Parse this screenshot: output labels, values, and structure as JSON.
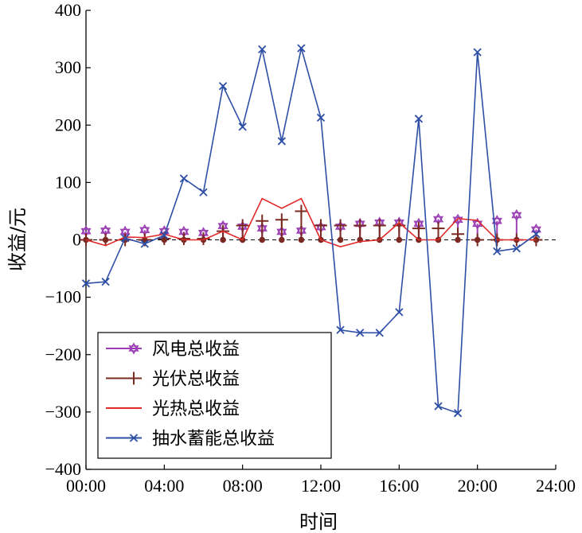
{
  "chart_data": {
    "type": "line",
    "xlabel": "时间",
    "ylabel": "收益/元",
    "xlim": [
      0,
      24
    ],
    "ylim": [
      -400,
      400
    ],
    "x_ticks": [
      "00:00",
      "04:00",
      "08:00",
      "12:00",
      "16:00",
      "20:00",
      "24:00"
    ],
    "y_ticks": [
      "400",
      "300",
      "200",
      "100",
      "0",
      "−100",
      "−200",
      "−300",
      "−400"
    ],
    "grid": false,
    "zero_line": "dashed",
    "legend_position": "bottom-left",
    "x": [
      0,
      1,
      2,
      3,
      4,
      5,
      6,
      7,
      8,
      9,
      10,
      11,
      12,
      13,
      14,
      15,
      16,
      17,
      18,
      19,
      20,
      21,
      22,
      23
    ],
    "series": [
      {
        "name": "风电总收益",
        "marker": "hexagram",
        "style": "stem",
        "color": "#9b3fb5",
        "values": [
          15,
          16,
          14,
          17,
          15,
          14,
          12,
          24,
          23,
          20,
          14,
          16,
          22,
          23,
          28,
          30,
          30,
          28,
          36,
          35,
          28,
          33,
          43,
          18
        ]
      },
      {
        "name": "光伏总收益",
        "marker": "plus",
        "style": "stem",
        "color": "#7a2a20",
        "values": [
          0,
          0,
          0,
          0,
          2,
          2,
          2,
          15,
          25,
          33,
          35,
          50,
          25,
          25,
          25,
          25,
          25,
          20,
          20,
          10,
          0,
          0,
          0,
          0
        ]
      },
      {
        "name": "光热总收益",
        "marker": "none",
        "style": "line",
        "color": "#e02a2a",
        "values": [
          0,
          -10,
          5,
          4,
          10,
          0,
          0,
          15,
          0,
          72,
          55,
          72,
          0,
          -12,
          -3,
          0,
          30,
          0,
          0,
          37,
          34,
          0,
          0,
          0
        ]
      },
      {
        "name": "抽水蓄能总收益",
        "marker": "x",
        "style": "line",
        "color": "#2e4fa6",
        "values": [
          -76,
          -73,
          3,
          -7,
          8,
          107,
          83,
          268,
          197,
          332,
          172,
          334,
          213,
          -157,
          -162,
          -162,
          -126,
          211,
          -290,
          -302,
          327,
          -20,
          -15,
          10
        ]
      }
    ]
  }
}
